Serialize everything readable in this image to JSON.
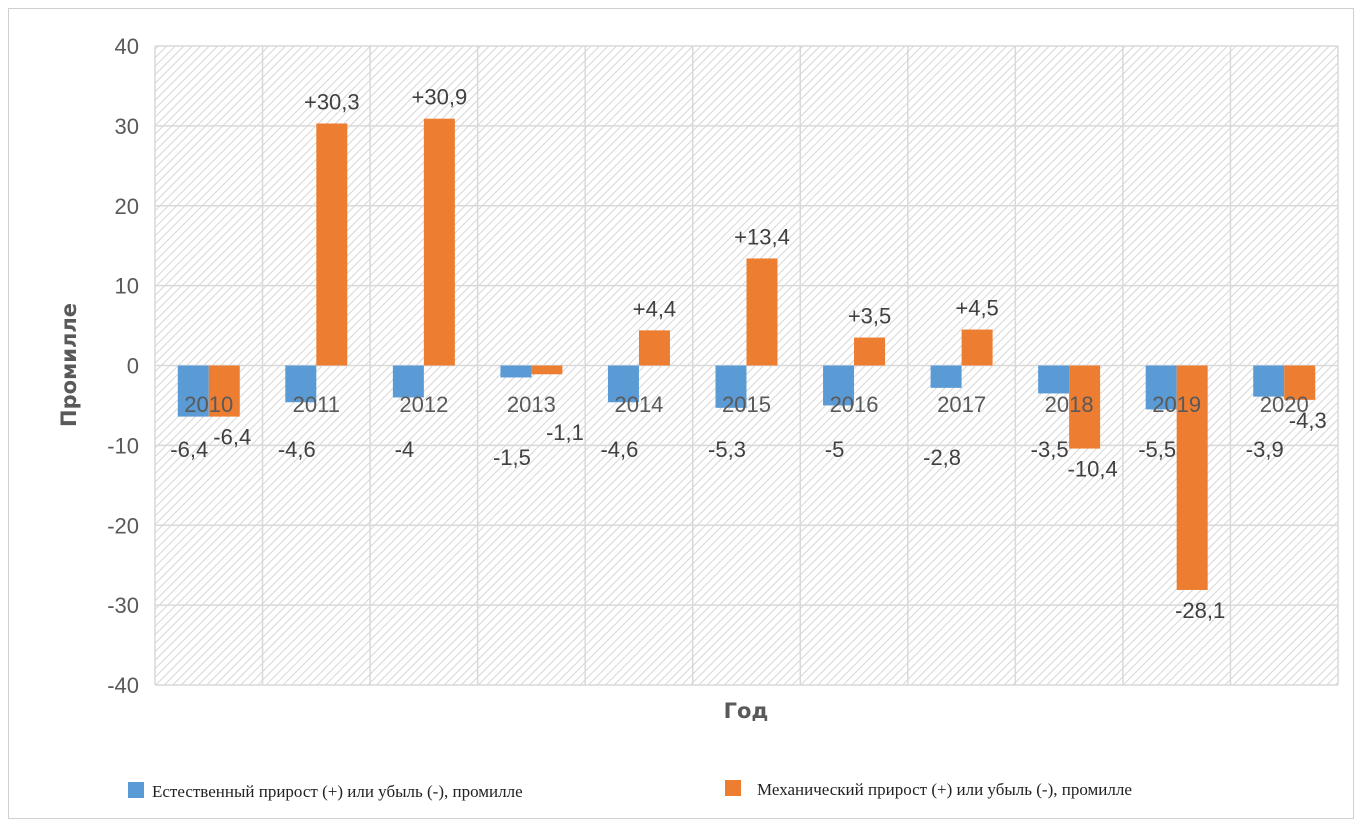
{
  "chart_data": {
    "type": "bar",
    "categories": [
      "2010",
      "2011",
      "2012",
      "2013",
      "2014",
      "2015",
      "2016",
      "2017",
      "2018",
      "2019",
      "2020"
    ],
    "series": [
      {
        "name": "Естественный прирост (+) или убыль (-), промилле",
        "color": "#5B9BD5",
        "values": [
          -6.4,
          -4.6,
          -4,
          -1.5,
          -4.6,
          -5.3,
          -5,
          -2.8,
          -3.5,
          -5.5,
          -3.9
        ],
        "labels": [
          "-6,4",
          "-4,6",
          "-4",
          "-1,5",
          "-4,6",
          "-5,3",
          "-5",
          "-2,8",
          "-3,5",
          "-5,5",
          "-3,9"
        ]
      },
      {
        "name": "Механический прирост (+) или убыль (-), промилле",
        "color": "#ED7D31",
        "values": [
          -6.4,
          30.3,
          30.9,
          -1.1,
          4.4,
          13.4,
          3.5,
          4.5,
          -10.4,
          -28.1,
          -4.3
        ],
        "labels": [
          "-6,4",
          "+30,3",
          "+30,9",
          "-1,1",
          "+4,4",
          "+13,4",
          "+3,5",
          "+4,5",
          "-10,4",
          "-28,1",
          "-4,3"
        ]
      }
    ],
    "ylim": [
      -40,
      40
    ],
    "yticks": [
      "40",
      "30",
      "20",
      "10",
      "0",
      "-10",
      "-20",
      "-30",
      "-40"
    ],
    "ylabel": "Промилле",
    "xlabel": "Год",
    "grid": true,
    "legend_position": "bottom"
  }
}
